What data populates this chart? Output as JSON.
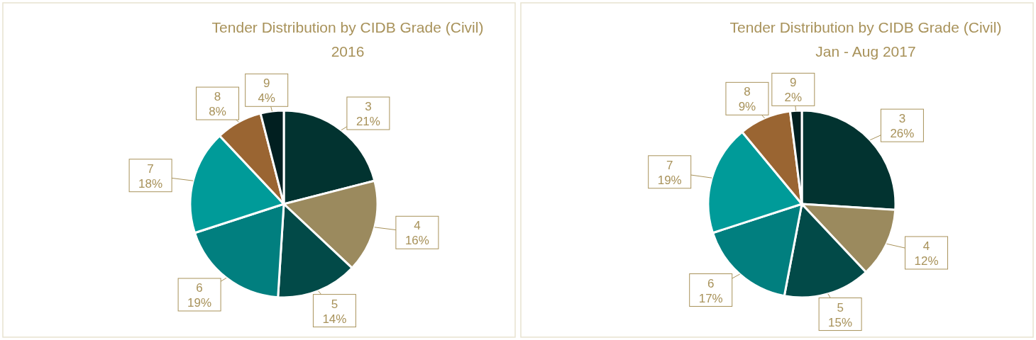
{
  "chart_data": [
    {
      "type": "pie",
      "title": "Tender Distribution by CIDB Grade (Civil)",
      "subtitle": "2016",
      "categories": [
        "3",
        "4",
        "5",
        "6",
        "7",
        "8",
        "9"
      ],
      "values": [
        21,
        16,
        14,
        19,
        18,
        8,
        4
      ],
      "value_labels": [
        "21%",
        "16%",
        "14%",
        "19%",
        "18%",
        "8%",
        "4%"
      ],
      "colors": [
        "#023330",
        "#9b8a5e",
        "#024a48",
        "#017f7f",
        "#009b99",
        "#9a6532",
        "#011f20"
      ]
    },
    {
      "type": "pie",
      "title": "Tender Distribution by CIDB Grade (Civil)",
      "subtitle": "Jan - Aug 2017",
      "categories": [
        "3",
        "4",
        "5",
        "6",
        "7",
        "8",
        "9"
      ],
      "values": [
        26,
        12,
        15,
        17,
        19,
        9,
        2
      ],
      "value_labels": [
        "26%",
        "12%",
        "15%",
        "17%",
        "19%",
        "9%",
        "2%"
      ],
      "colors": [
        "#023330",
        "#9b8a5e",
        "#024a48",
        "#017f7f",
        "#009b99",
        "#9a6532",
        "#011f20"
      ]
    }
  ]
}
